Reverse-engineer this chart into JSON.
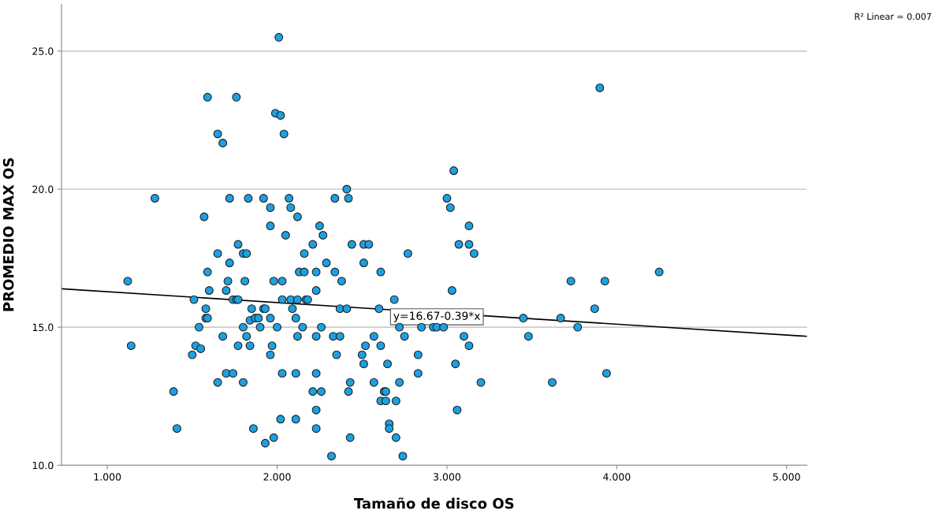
{
  "chart_data": {
    "type": "scatter",
    "xlabel": "Tamaño de disco OS",
    "ylabel": "PROMEDIO MAX OS",
    "xlim": [
      0.73,
      5.12
    ],
    "ylim": [
      10,
      26.7
    ],
    "xticks": [
      {
        "value": 1,
        "label": "1.000"
      },
      {
        "value": 2,
        "label": "2.000"
      },
      {
        "value": 3,
        "label": "3.000"
      },
      {
        "value": 4,
        "label": "4.000"
      },
      {
        "value": 5,
        "label": "5.000"
      }
    ],
    "yticks": [
      {
        "value": 10,
        "label": "10.0"
      },
      {
        "value": 15,
        "label": "15.0"
      },
      {
        "value": 20,
        "label": "20.0"
      },
      {
        "value": 25,
        "label": "25.0"
      }
    ],
    "grid": "y",
    "series": [
      {
        "marker": "circle",
        "color": "#1ba1e2",
        "x": [
          1.12,
          1.14,
          1.39,
          1.41,
          1.5,
          1.51,
          1.52,
          1.55,
          1.54,
          1.58,
          1.58,
          1.59,
          1.59,
          1.6,
          1.65,
          1.68,
          1.7,
          1.74,
          1.7,
          1.71,
          1.72,
          1.74,
          1.76,
          1.77,
          1.77,
          1.8,
          1.8,
          1.81,
          1.82,
          1.84,
          1.84,
          1.85,
          1.86,
          1.87,
          1.89,
          1.9,
          1.92,
          1.93,
          1.93,
          1.96,
          1.96,
          1.97,
          1.98,
          1.98,
          2.0,
          2.02,
          2.03,
          2.03,
          2.03,
          2.08,
          2.09,
          2.11,
          2.11,
          2.11,
          2.12,
          2.12,
          2.13,
          2.15,
          2.16,
          2.17,
          1.59,
          1.76,
          1.65,
          1.68,
          1.99,
          2.02,
          2.04,
          1.28,
          1.72,
          1.83,
          1.92,
          2.07,
          1.96,
          2.08,
          1.57,
          2.12,
          1.96,
          2.05,
          1.77,
          1.65,
          1.8,
          1.82,
          2.16,
          2.01,
          3.04,
          2.41,
          2.34,
          2.42,
          3.0,
          3.02,
          2.25,
          2.27,
          3.13,
          2.21,
          2.44,
          2.51,
          2.54,
          3.07,
          3.13,
          3.16,
          2.77,
          2.29,
          2.51,
          2.23,
          2.34,
          2.61,
          2.38,
          3.03,
          2.23,
          2.18,
          2.69,
          2.37,
          2.41,
          2.6,
          2.26,
          2.72,
          2.85,
          2.92,
          2.94,
          2.98,
          2.23,
          2.33,
          2.37,
          2.57,
          2.75,
          3.1,
          2.52,
          2.61,
          3.13,
          2.35,
          2.5,
          2.83,
          2.51,
          2.65,
          3.05,
          2.23,
          2.83,
          2.43,
          2.57,
          2.72,
          3.2,
          2.21,
          2.26,
          2.42,
          2.63,
          2.64,
          2.61,
          2.64,
          2.7,
          2.23,
          3.06,
          2.66,
          2.23,
          2.66,
          2.43,
          2.7,
          2.32,
          2.74,
          4.25,
          3.73,
          3.93,
          3.87,
          3.45,
          3.67,
          3.77,
          3.48,
          3.94,
          3.62,
          3.9
        ],
        "values": [
          16.67,
          14.33,
          12.67,
          11.33,
          14.0,
          16.0,
          14.33,
          14.22,
          15.0,
          15.67,
          15.33,
          15.33,
          17.0,
          16.33,
          13.0,
          14.67,
          13.33,
          13.33,
          16.33,
          16.67,
          17.33,
          16.0,
          16.0,
          16.0,
          14.33,
          15.0,
          13.0,
          16.67,
          14.67,
          14.33,
          15.25,
          15.67,
          11.33,
          15.33,
          15.33,
          15.0,
          15.67,
          15.67,
          10.8,
          15.33,
          14.0,
          14.33,
          16.67,
          11.0,
          15.0,
          11.67,
          16.67,
          16.0,
          13.33,
          16.0,
          15.67,
          15.33,
          13.33,
          11.67,
          16.0,
          14.67,
          17.0,
          15.0,
          17.0,
          16.0,
          23.33,
          23.33,
          22.0,
          21.67,
          22.75,
          22.67,
          22.0,
          19.67,
          19.67,
          19.67,
          19.67,
          19.67,
          19.33,
          19.33,
          19.0,
          19.0,
          18.67,
          18.33,
          18.0,
          17.67,
          17.67,
          17.67,
          17.67,
          25.5,
          20.67,
          20.0,
          19.67,
          19.67,
          19.67,
          19.33,
          18.67,
          18.33,
          18.67,
          18.0,
          18.0,
          18.0,
          18.0,
          18.0,
          18.0,
          17.67,
          17.67,
          17.33,
          17.33,
          17.0,
          17.0,
          17.0,
          16.67,
          16.33,
          16.33,
          16.0,
          16.0,
          15.67,
          15.67,
          15.67,
          15.0,
          15.0,
          15.0,
          15.0,
          15.0,
          15.0,
          14.67,
          14.67,
          14.67,
          14.67,
          14.67,
          14.67,
          14.33,
          14.33,
          14.33,
          14.0,
          14.0,
          14.0,
          13.67,
          13.67,
          13.67,
          13.33,
          13.33,
          13.0,
          13.0,
          13.0,
          13.0,
          12.67,
          12.67,
          12.67,
          12.67,
          12.67,
          12.33,
          12.33,
          12.33,
          12.0,
          12.0,
          11.5,
          11.33,
          11.33,
          11.0,
          11.0,
          10.33,
          10.33,
          17.0,
          16.67,
          16.67,
          15.67,
          15.33,
          15.33,
          15.0,
          14.67,
          13.33,
          13.0,
          23.67
        ]
      },
      {
        "type": "line",
        "color": "#000000",
        "x": [
          0.73,
          5.12
        ],
        "values": [
          16.39,
          14.67
        ]
      }
    ],
    "annotations": [
      "y=16.67-0.39*x",
      "R² Linear = 0.007"
    ]
  }
}
